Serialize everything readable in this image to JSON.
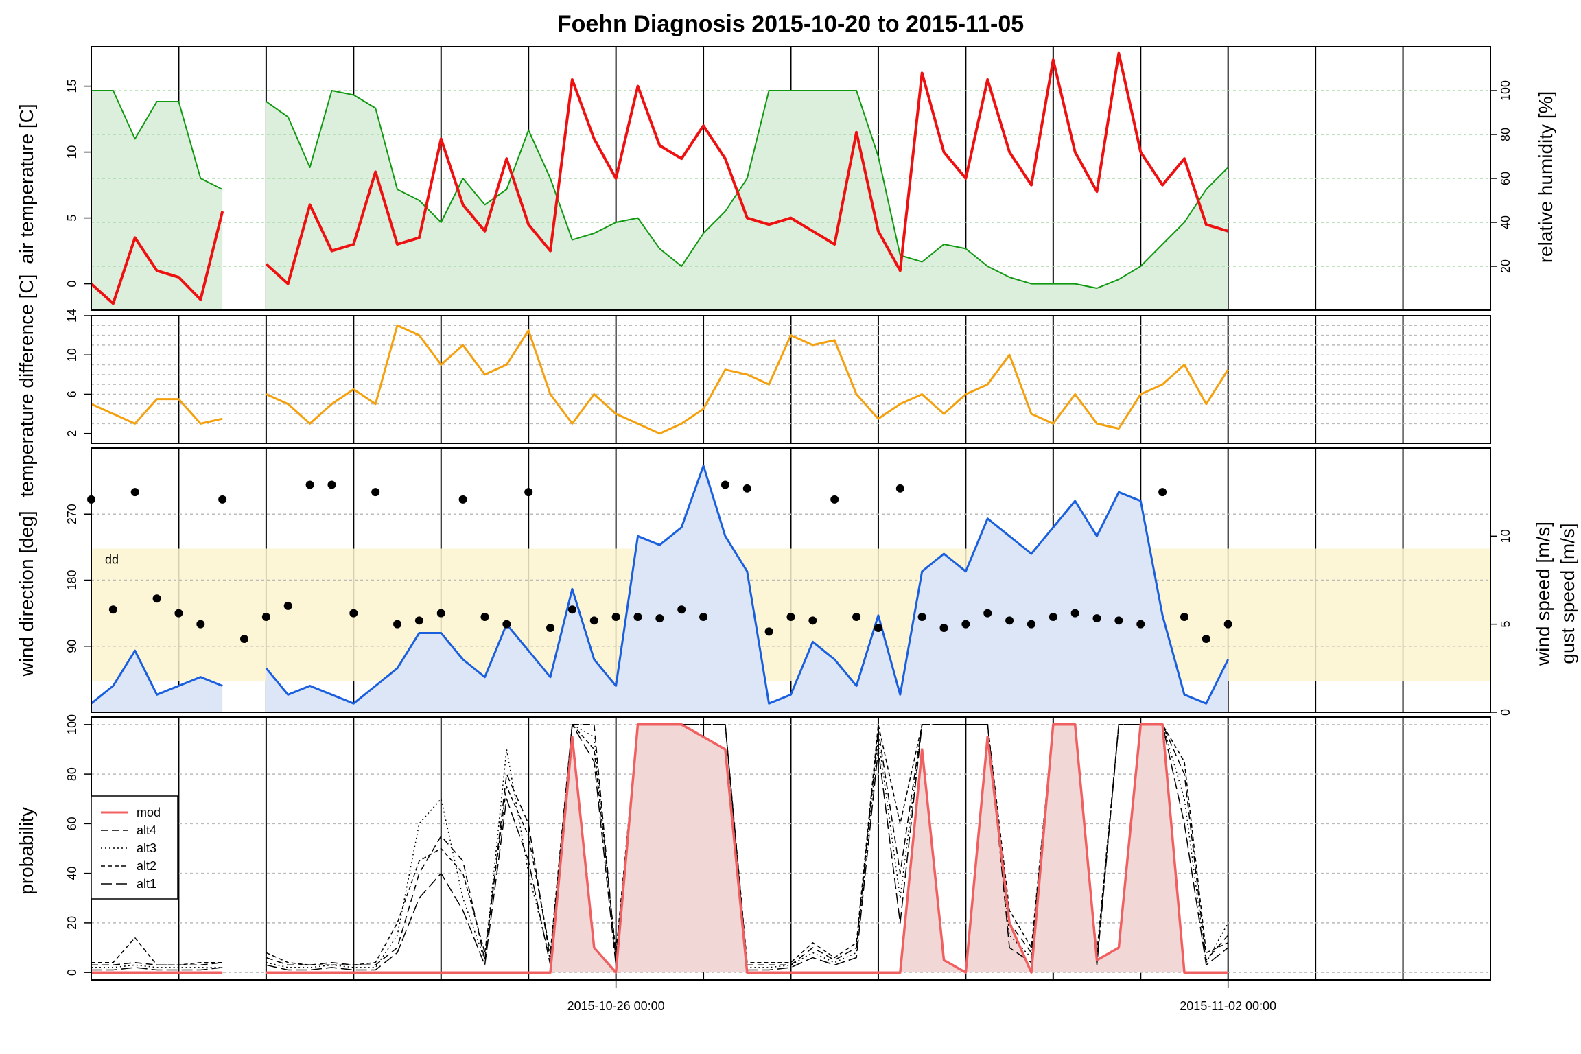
{
  "colors": {
    "air_temperature": "#ee1111",
    "relative_humidity_line": "#119911",
    "relative_humidity_fill": "#dcefdc",
    "temperature_difference": "#f5a10f",
    "wind_direction": "#000000",
    "wind_speed": "#1a5fdd",
    "wind_speed_fill": "#dce6f7",
    "dd_band": "#fbf3cf",
    "foehn_shade": "#e3e3e3",
    "prob_mod": "#f06060",
    "prob_fill": "#f2d7d7",
    "grid": "#bbbbbb"
  },
  "chart_data": {
    "title": "Foehn Diagnosis 2015-10-20 to 2015-11-05",
    "x_axis": {
      "type": "time",
      "range": [
        "2015-10-20 00:00",
        "2015-11-05 00:00"
      ],
      "tick_labels": [
        "2015-10-26 00:00",
        "2015-11-02 00:00"
      ]
    },
    "foehn_periods_hours": [
      [
        0,
        0
      ]
    ],
    "panels": [
      {
        "name": "temperature_humidity",
        "type": "line",
        "ylabel": "air temperature [C]",
        "ylabel_right": "relative humidity [%]",
        "ylim": [
          -2,
          18
        ],
        "yticks": [
          0,
          5,
          10,
          15
        ],
        "ylim_right": [
          0,
          120
        ],
        "yticks_right": [
          20,
          40,
          60,
          80,
          100
        ],
        "series": [
          {
            "key": "t",
            "axis": "left",
            "start_hour": 0,
            "step_hours": 6,
            "values": [
              0.0,
              -1.5,
              3.5,
              1.0,
              0.5,
              -1.2,
              5.5,
              null,
              1.5,
              0.0,
              6.0,
              2.5,
              3.0,
              8.5,
              3.0,
              3.5,
              11.0,
              6.0,
              4.0,
              9.5,
              4.5,
              2.5,
              15.5,
              11.0,
              8.0,
              15.0,
              10.5,
              9.5,
              12.0,
              9.5,
              5.0,
              4.5,
              5.0,
              4.0,
              3.0,
              11.5,
              4.0,
              1.0,
              16.0,
              10.0,
              8.0,
              15.5,
              10.0,
              7.5,
              17.0,
              10.0,
              7.0,
              17.5,
              10.0,
              7.5,
              9.5,
              4.5,
              4.0
            ]
          },
          {
            "key": "rh",
            "axis": "right",
            "start_hour": 0,
            "step_hours": 6,
            "values": [
              100,
              100,
              78,
              95,
              95,
              60,
              55,
              null,
              95,
              88,
              65,
              100,
              98,
              92,
              55,
              50,
              40,
              60,
              48,
              55,
              82,
              60,
              32,
              35,
              40,
              42,
              28,
              20,
              35,
              45,
              60,
              100,
              100,
              100,
              100,
              100,
              70,
              25,
              22,
              30,
              28,
              20,
              15,
              12,
              12,
              12,
              10,
              14,
              20,
              30,
              40,
              55,
              65
            ]
          }
        ]
      },
      {
        "name": "temperature_difference",
        "type": "line",
        "ylabel": "temperature difference [C]",
        "ylim": [
          1,
          14
        ],
        "yticks": [
          2,
          6,
          10,
          14
        ],
        "series": [
          {
            "key": "dt",
            "start_hour": 0,
            "step_hours": 6,
            "values": [
              5.0,
              4.0,
              3.0,
              5.5,
              5.5,
              3.0,
              3.5,
              null,
              6.0,
              5.0,
              3.0,
              5.0,
              6.5,
              5.0,
              13.0,
              12.0,
              9.0,
              11.0,
              8.0,
              9.0,
              12.5,
              6.0,
              3.0,
              6.0,
              4.0,
              3.0,
              2.0,
              3.0,
              4.5,
              8.5,
              8.0,
              7.0,
              12.0,
              11.0,
              11.5,
              6.0,
              3.5,
              5.0,
              6.0,
              4.0,
              6.0,
              7.0,
              10.0,
              4.0,
              3.0,
              6.0,
              3.0,
              2.5,
              6.0,
              7.0,
              9.0,
              5.0,
              8.5
            ]
          }
        ]
      },
      {
        "name": "wind",
        "type": "scatter+line",
        "ylabel": "wind direction [deg]",
        "ylabel_right": [
          "wind speed [m/s]",
          "gust speed [m/s]"
        ],
        "ylim": [
          0,
          360
        ],
        "yticks": [
          90,
          180,
          270
        ],
        "ylim_right": [
          0,
          15
        ],
        "yticks_right": [
          0,
          5,
          10
        ],
        "band_label": "dd",
        "band": [
          43,
          223
        ],
        "series": [
          {
            "key": "dd",
            "start_hour": 0,
            "step_hours": 6,
            "values": [
              290,
              140,
              300,
              155,
              135,
              120,
              290,
              100,
              130,
              145,
              310,
              310,
              135,
              300,
              120,
              125,
              135,
              290,
              130,
              120,
              300,
              115,
              140,
              125,
              130,
              130,
              128,
              140,
              130,
              310,
              305,
              110,
              130,
              125,
              290,
              130,
              115,
              305,
              130,
              115,
              120,
              135,
              125,
              120,
              130,
              135,
              128,
              125,
              120,
              300,
              130,
              100,
              120
            ]
          },
          {
            "key": "ff",
            "start_hour": 0,
            "step_hours": 6,
            "values": [
              0.5,
              1.5,
              3.5,
              1.0,
              1.5,
              2.0,
              1.5,
              null,
              2.5,
              1.0,
              1.5,
              1.0,
              0.5,
              1.5,
              2.5,
              4.5,
              4.5,
              3.0,
              2.0,
              5.0,
              3.5,
              2.0,
              7.0,
              3.0,
              1.5,
              10.0,
              9.5,
              10.5,
              14.0,
              10.0,
              8.0,
              0.5,
              1.0,
              4.0,
              3.0,
              1.5,
              5.5,
              1.0,
              8.0,
              9.0,
              8.0,
              11.0,
              10.0,
              9.0,
              10.5,
              12.0,
              10.0,
              12.5,
              12.0,
              5.5,
              1.0,
              0.5,
              3.0
            ]
          }
        ]
      },
      {
        "name": "probability",
        "type": "line",
        "ylabel": "probability",
        "ylim": [
          -3,
          103
        ],
        "yticks": [
          0,
          20,
          40,
          60,
          80,
          100
        ],
        "legend": {
          "position": "left",
          "entries": [
            "mod",
            "alt4",
            "alt3",
            "alt2",
            "alt1"
          ]
        },
        "series": [
          {
            "key": "mod",
            "start_hour": 0,
            "step_hours": 6,
            "values": [
              0,
              0,
              0,
              0,
              0,
              0,
              0,
              null,
              0,
              0,
              0,
              0,
              0,
              0,
              0,
              0,
              0,
              0,
              0,
              0,
              0,
              0,
              95,
              10,
              0,
              100,
              100,
              100,
              95,
              90,
              0,
              0,
              0,
              0,
              0,
              0,
              0,
              0,
              90,
              5,
              0,
              95,
              20,
              0,
              100,
              100,
              5,
              10,
              100,
              100,
              0,
              0,
              0
            ]
          },
          {
            "key": "alt4",
            "start_hour": 0,
            "step_hours": 6,
            "values": [
              3,
              3,
              4,
              3,
              3,
              3,
              4,
              null,
              6,
              3,
              3,
              4,
              3,
              3,
              10,
              40,
              55,
              45,
              5,
              80,
              60,
              5,
              100,
              100,
              5,
              100,
              100,
              100,
              100,
              100,
              3,
              3,
              3,
              10,
              5,
              10,
              98,
              40,
              100,
              100,
              100,
              100,
              20,
              8,
              100,
              100,
              5,
              100,
              100,
              100,
              80,
              5,
              15
            ]
          },
          {
            "key": "alt3",
            "start_hour": 0,
            "step_hours": 6,
            "values": [
              2,
              2,
              3,
              2,
              2,
              2,
              2,
              null,
              4,
              2,
              2,
              3,
              2,
              2,
              15,
              60,
              70,
              30,
              5,
              90,
              40,
              5,
              100,
              95,
              5,
              100,
              100,
              100,
              100,
              100,
              2,
              2,
              3,
              8,
              4,
              8,
              95,
              30,
              100,
              100,
              100,
              100,
              15,
              6,
              100,
              100,
              5,
              100,
              100,
              100,
              70,
              4,
              20
            ]
          },
          {
            "key": "alt2",
            "start_hour": 0,
            "step_hours": 6,
            "values": [
              4,
              4,
              14,
              3,
              3,
              4,
              4,
              null,
              8,
              4,
              3,
              3,
              3,
              4,
              20,
              45,
              50,
              40,
              8,
              75,
              55,
              8,
              100,
              90,
              8,
              100,
              100,
              100,
              100,
              100,
              4,
              4,
              4,
              12,
              6,
              12,
              100,
              60,
              100,
              100,
              100,
              100,
              25,
              10,
              100,
              100,
              8,
              100,
              100,
              100,
              85,
              8,
              12
            ]
          },
          {
            "key": "alt1",
            "start_hour": 0,
            "step_hours": 6,
            "values": [
              1,
              1,
              2,
              1,
              1,
              1,
              2,
              null,
              3,
              1,
              1,
              2,
              1,
              1,
              8,
              30,
              40,
              25,
              3,
              70,
              45,
              3,
              100,
              85,
              3,
              100,
              100,
              100,
              100,
              100,
              1,
              1,
              2,
              6,
              3,
              6,
              90,
              20,
              100,
              100,
              100,
              100,
              10,
              4,
              100,
              100,
              3,
              100,
              100,
              100,
              60,
              3,
              10
            ]
          }
        ]
      }
    ]
  }
}
